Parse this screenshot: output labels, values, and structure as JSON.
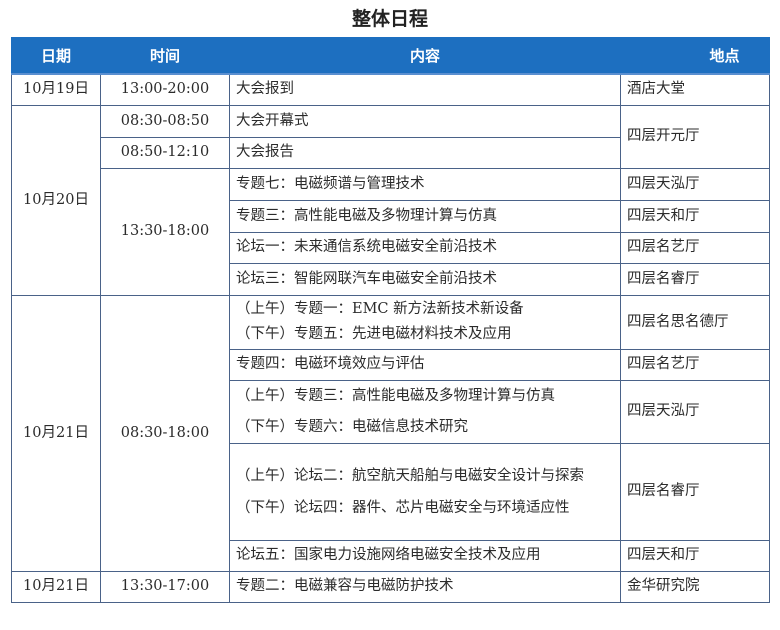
{
  "title": "整体日程",
  "headers": {
    "date": "日期",
    "time": "时间",
    "content": "内容",
    "location": "地点"
  },
  "rows": {
    "r1": {
      "date": "10月19日",
      "time": "13:00-20:00",
      "content": "大会报到",
      "location": "酒店大堂"
    },
    "r2": {
      "date": "10月20日",
      "time": "08:30-08:50",
      "content": "大会开幕式",
      "location": "四层开元厅"
    },
    "r3": {
      "time": "08:50-12:10",
      "content": "大会报告"
    },
    "r4": {
      "time": "13:30-18:00",
      "content": "专题七：电磁频谱与管理技术",
      "location": "四层天泓厅"
    },
    "r5": {
      "content": "专题三：高性能电磁及多物理计算与仿真",
      "location": "四层天和厅"
    },
    "r6": {
      "content": "论坛一：未来通信系统电磁安全前沿技术",
      "location": "四层名艺厅"
    },
    "r7": {
      "content": "论坛三：智能网联汽车电磁安全前沿技术",
      "location": "四层名睿厅"
    },
    "r8": {
      "date": "10月21日",
      "time": "08:30-18:00",
      "content_am": "（上午）专题一：EMC 新方法新技术新设备",
      "content_pm": "（下午）专题五：先进电磁材料技术及应用",
      "location": "四层名思名德厅"
    },
    "r9": {
      "content": "专题四：电磁环境效应与评估",
      "location": "四层名艺厅"
    },
    "r10": {
      "content_am": "（上午）专题三：高性能电磁及多物理计算与仿真",
      "content_pm": "（下午）专题六：电磁信息技术研究",
      "location": "四层天泓厅"
    },
    "r11": {
      "content_am": "（上午）论坛二：航空航天船舶与电磁安全设计与探索",
      "content_pm": "（下午）论坛四：器件、芯片电磁安全与环境适应性",
      "location": "四层名睿厅"
    },
    "r12": {
      "content": "论坛五：国家电力设施网络电磁安全技术及应用",
      "location": "四层天和厅"
    },
    "r13": {
      "date": "10月21日",
      "time": "13:30-17:00",
      "content": "专题二：电磁兼容与电磁防护技术",
      "location": "金华研究院"
    }
  },
  "colors": {
    "header_bg": "#1d6fc0",
    "border": "#4a6288"
  }
}
